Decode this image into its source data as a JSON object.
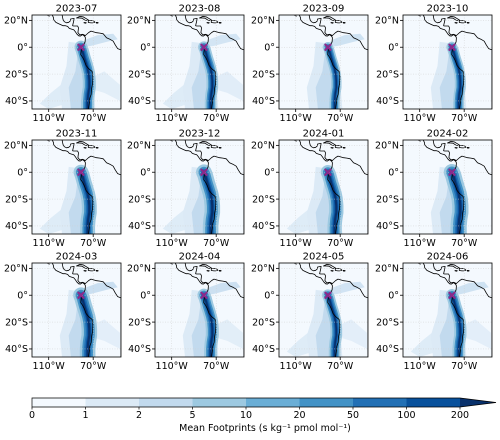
{
  "chart_data": {
    "type": "heatmap",
    "panels": [
      {
        "title": "2023-07"
      },
      {
        "title": "2023-08"
      },
      {
        "title": "2023-09"
      },
      {
        "title": "2023-10"
      },
      {
        "title": "2023-11"
      },
      {
        "title": "2023-12"
      },
      {
        "title": "2024-01"
      },
      {
        "title": "2024-02"
      },
      {
        "title": "2024-03"
      },
      {
        "title": "2024-04"
      },
      {
        "title": "2024-05"
      },
      {
        "title": "2024-06"
      }
    ],
    "lat_ticks": [
      {
        "value": 20,
        "label": "20°N"
      },
      {
        "value": 0,
        "label": "0°"
      },
      {
        "value": -20,
        "label": "20°S"
      },
      {
        "value": -40,
        "label": "40°S"
      }
    ],
    "lon_ticks": [
      {
        "value": -110,
        "label": "110°W"
      },
      {
        "value": -70,
        "label": "70°W"
      }
    ],
    "lon_range": [
      -125,
      -45
    ],
    "lat_range": [
      -46,
      24
    ],
    "marker": {
      "lon": -81,
      "lat": 0,
      "color": "#8b2a8b"
    },
    "colorbar": {
      "levels": [
        "0",
        "1",
        "2",
        "5",
        "10",
        "20",
        "50",
        "100",
        "200"
      ],
      "colors": [
        "#f4f9fe",
        "#dceaf6",
        "#c2daee",
        "#9dc9e1",
        "#6aaed6",
        "#4292c6",
        "#2270b5",
        "#08519c",
        "#08306b"
      ],
      "extend": "max",
      "label": "Mean Footprints (s kg⁻¹ pmol mol⁻¹)"
    }
  }
}
